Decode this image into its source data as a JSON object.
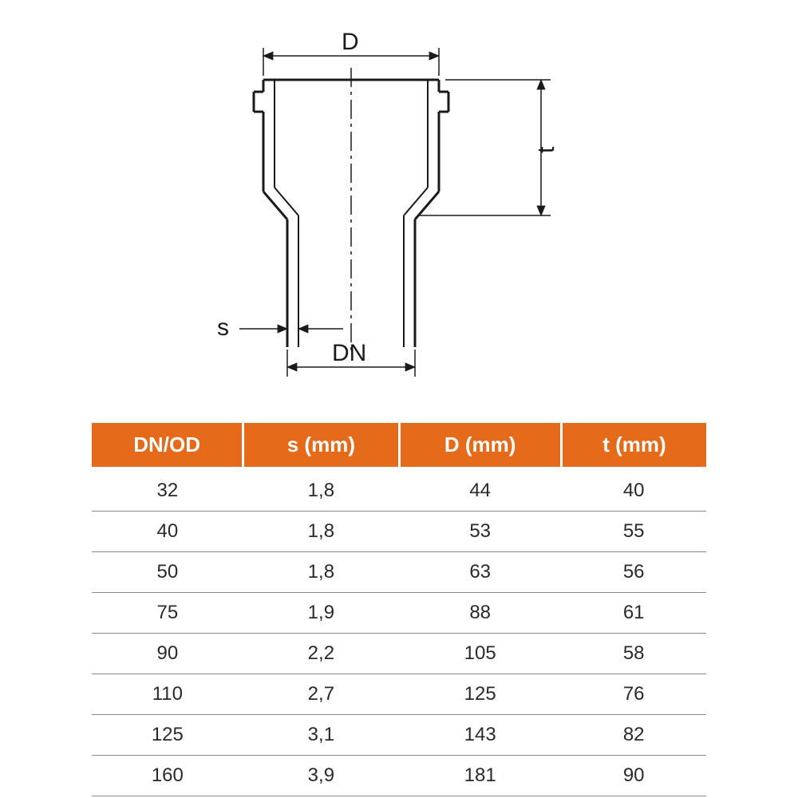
{
  "diagram": {
    "labels": {
      "D": "D",
      "t": "t",
      "s": "s",
      "DN": "DN"
    },
    "stroke_color": "#1a1a1a",
    "centerline_color": "#1a1a1a"
  },
  "table": {
    "header_bg": "#e56a1a",
    "header_fg": "#ffffff",
    "row_border": "#8a8a8a",
    "cell_fg": "#2a2a2a",
    "columns": [
      "DN/OD",
      "s (mm)",
      "D (mm)",
      "t (mm)"
    ],
    "rows": [
      [
        "32",
        "1,8",
        "44",
        "40"
      ],
      [
        "40",
        "1,8",
        "53",
        "55"
      ],
      [
        "50",
        "1,8",
        "63",
        "56"
      ],
      [
        "75",
        "1,9",
        "88",
        "61"
      ],
      [
        "90",
        "2,2",
        "105",
        "58"
      ],
      [
        "110",
        "2,7",
        "125",
        "76"
      ],
      [
        "125",
        "3,1",
        "143",
        "82"
      ],
      [
        "160",
        "3,9",
        "181",
        "90"
      ]
    ]
  }
}
